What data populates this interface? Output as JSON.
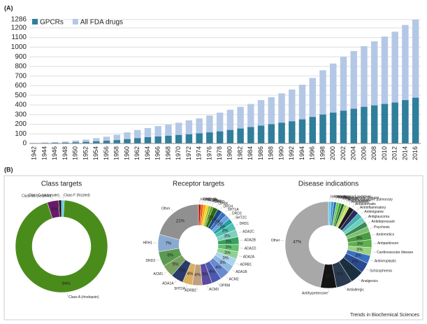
{
  "panel_labels": [
    "(A)",
    "(B)"
  ],
  "footer": "Trends in Biochemical Sciences",
  "chart_data": [
    {
      "type": "bar",
      "categories": [
        "1942",
        "1944",
        "1946",
        "1948",
        "1950",
        "1952",
        "1954",
        "1956",
        "1958",
        "1960",
        "1962",
        "1964",
        "1966",
        "1968",
        "1970",
        "1972",
        "1974",
        "1976",
        "1978",
        "1980",
        "1982",
        "1984",
        "1986",
        "1988",
        "1990",
        "1992",
        "1994",
        "1996",
        "1998",
        "2000",
        "2002",
        "2004",
        "2006",
        "2008",
        "2010",
        "2012",
        "2014",
        "2016"
      ],
      "series": [
        {
          "name": "All FDA drugs",
          "color": "#b4c8e6",
          "values": [
            5,
            10,
            15,
            20,
            30,
            40,
            55,
            70,
            90,
            115,
            140,
            160,
            180,
            195,
            215,
            240,
            260,
            290,
            320,
            350,
            380,
            410,
            450,
            480,
            520,
            560,
            610,
            680,
            760,
            830,
            900,
            960,
            1010,
            1060,
            1110,
            1160,
            1230,
            1286
          ]
        },
        {
          "name": "GPCRs",
          "color": "#2f7f9c",
          "values": [
            2,
            4,
            6,
            8,
            12,
            16,
            22,
            28,
            35,
            45,
            55,
            65,
            72,
            80,
            88,
            95,
            105,
            115,
            125,
            140,
            155,
            170,
            185,
            200,
            215,
            230,
            250,
            275,
            300,
            320,
            340,
            360,
            380,
            395,
            410,
            425,
            450,
            475
          ]
        }
      ],
      "ylim": [
        0,
        1286
      ],
      "yticks": [
        0,
        100,
        200,
        300,
        400,
        500,
        600,
        700,
        800,
        900,
        1000,
        1100,
        1200,
        1286
      ],
      "grid": true,
      "legend": "top-left"
    },
    {
      "type": "donut",
      "title": "Class targets",
      "categories": [
        "Class F (frizzled)",
        "Class A (rhodopsin)",
        "Class B1 (secretin)",
        "Class C (glutamate)"
      ],
      "values": [
        1,
        94,
        4,
        1
      ],
      "value_labels": [
        null,
        "94%",
        "4%",
        null
      ],
      "colors": [
        "#5bc8e8",
        "#4a8c1c",
        "#6a1a6a",
        "#1a1a1a"
      ]
    },
    {
      "type": "donut",
      "title": "Receptor targets",
      "categories": [
        "HRH2",
        "GNRHR",
        "5HT1B",
        "ACM5",
        "ACM4",
        "OPRD",
        "OPRK",
        "DRD4",
        "5HT1A",
        "DRD3",
        "5HT2C",
        "DRD1",
        "ADA2C",
        "ADA2B",
        "ADA1D",
        "ADA2A",
        "ADRB1",
        "ADA1B",
        "ACM2",
        "OPRM",
        "ACM3",
        "ADRB2",
        "5HT2A",
        "ADA1A",
        "ACM1",
        "DRD2",
        "HRH1",
        "Other"
      ],
      "values": [
        1,
        1,
        1,
        1,
        1,
        1,
        2,
        2,
        2,
        2,
        2,
        3,
        3,
        3,
        3,
        3,
        3,
        3,
        4,
        4,
        4,
        4,
        4,
        5,
        5,
        6,
        7,
        21
      ],
      "value_labels": [
        null,
        null,
        null,
        null,
        null,
        null,
        "2%",
        "2%",
        "2%",
        "2%",
        "2%",
        "3%",
        "3%",
        "3%",
        "3%",
        "3%",
        "3%",
        "3%",
        "4%",
        "4%",
        "4%",
        "4%",
        "4%",
        "5%",
        "5%",
        "6%",
        "7%",
        "21%"
      ],
      "colors": [
        "#c00000",
        "#e05a00",
        "#f0a000",
        "#ffd000",
        "#9bbb30",
        "#5a9a20",
        "#2a6a10",
        "#1a4a80",
        "#3a70c0",
        "#6aa0e0",
        "#20a0a0",
        "#50c0b0",
        "#80d0c0",
        "#3aa060",
        "#60c070",
        "#90d090",
        "#aad4ee",
        "#8fb8e0",
        "#6a8ad0",
        "#4a5ab0",
        "#5a4aa0",
        "#c0a080",
        "#d8b060",
        "#2a3a6a",
        "#7aa060",
        "#5a9a50",
        "#8aaad0",
        "#909090"
      ]
    },
    {
      "type": "donut",
      "title": "Disease indications",
      "categories": [
        "Incontinence",
        "Hypnotics and sedatives",
        "Fertility",
        "Digestive system disease",
        "Diagnostic",
        "Chronic obstructive pulmonary",
        "Bronchodilator",
        "Antidiabetic",
        "Antiasthmatic",
        "Antiinflammatory",
        "Antimigraine",
        "Antiglaucoma",
        "Antidepressant",
        "Psychosis",
        "Antiemetics",
        "Antiparkinson",
        "Cardiovascular disease",
        "Antineoplastic",
        "Schizophrenia",
        "Analgesics",
        "Antiallergic",
        "Antihypertensive",
        "Other"
      ],
      "values": [
        1,
        1,
        1,
        1,
        1,
        1,
        1,
        1,
        2,
        2,
        2,
        2,
        2,
        2,
        3,
        3,
        3,
        3,
        4,
        5,
        6,
        6,
        47
      ],
      "value_labels": [
        null,
        null,
        null,
        null,
        null,
        null,
        null,
        null,
        null,
        null,
        null,
        null,
        null,
        null,
        "3%",
        "3%",
        "3%",
        "3%",
        "4%",
        "5%",
        "6%",
        "6%",
        "47%"
      ],
      "colors": [
        "#5bc8e8",
        "#3a9ad0",
        "#2a6ab0",
        "#6acc50",
        "#3a9a30",
        "#1a5a20",
        "#9ad050",
        "#c8e060",
        "#1a1a1a",
        "#2a2a60",
        "#4ab0b0",
        "#6ad0c0",
        "#3a8a50",
        "#7ac070",
        "#4a9a40",
        "#60b050",
        "#9ad080",
        "#3a70c0",
        "#2a4a90",
        "#1a3040",
        "#2a3a50",
        "#141414",
        "#a8a8a8"
      ]
    }
  ]
}
